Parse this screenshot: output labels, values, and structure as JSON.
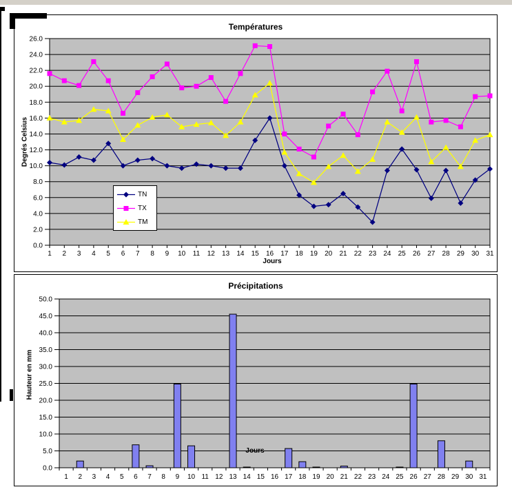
{
  "window": {
    "top_strip_color": "#d4d0c8",
    "frame_mark_color": "#000000",
    "page_background": "#ffffff"
  },
  "chart_data": [
    {
      "type": "line",
      "title": "Températures",
      "xlabel": "Jours",
      "ylabel": "Degrés Celsius",
      "ylim": [
        0,
        26
      ],
      "ytick_step": 2,
      "grid": true,
      "plot_bg": "#c0c0c0",
      "legend_position": "inside-bottom-center",
      "ytick_labels": [
        "0.0",
        "2.0",
        "4.0",
        "6.0",
        "8.0",
        "10.0",
        "12.0",
        "14.0",
        "16.0",
        "18.0",
        "20.0",
        "22.0",
        "24.0",
        "26.0"
      ],
      "x": [
        1,
        2,
        3,
        4,
        5,
        6,
        7,
        8,
        9,
        10,
        11,
        12,
        13,
        14,
        15,
        16,
        17,
        18,
        19,
        20,
        21,
        22,
        23,
        24,
        25,
        26,
        27,
        28,
        29,
        30,
        31
      ],
      "series": [
        {
          "name": "TN",
          "color": "#000080",
          "marker": "diamond",
          "values": [
            10.4,
            10.1,
            11.1,
            10.7,
            12.8,
            10.0,
            10.7,
            10.9,
            10.0,
            9.7,
            10.2,
            10.0,
            9.7,
            9.7,
            13.2,
            16.0,
            10.0,
            6.3,
            4.9,
            5.1,
            6.5,
            4.8,
            2.9,
            9.4,
            12.1,
            9.5,
            5.9,
            9.4,
            5.3,
            8.2,
            9.6
          ]
        },
        {
          "name": "TX",
          "color": "#ff00ff",
          "marker": "square",
          "values": [
            21.6,
            20.7,
            20.1,
            23.1,
            20.7,
            16.6,
            19.2,
            21.2,
            22.8,
            19.8,
            20.0,
            21.1,
            18.1,
            21.6,
            25.1,
            25.0,
            14.0,
            12.1,
            11.1,
            15.0,
            16.5,
            13.9,
            19.3,
            21.9,
            16.9,
            23.1,
            15.5,
            15.7,
            14.9,
            18.7,
            18.8
          ]
        },
        {
          "name": "TM",
          "color": "#ffff00",
          "marker": "triangle",
          "values": [
            16.0,
            15.5,
            15.7,
            17.1,
            16.9,
            13.3,
            15.1,
            16.1,
            16.4,
            14.9,
            15.2,
            15.4,
            13.8,
            15.5,
            18.9,
            20.4,
            11.7,
            9.0,
            7.9,
            9.9,
            11.3,
            9.3,
            10.8,
            15.5,
            14.2,
            16.1,
            10.5,
            12.3,
            9.9,
            13.2,
            13.9
          ]
        }
      ]
    },
    {
      "type": "bar",
      "title": "Précipitations",
      "xlabel": "Jours",
      "ylabel": "Hauteur en mm",
      "ylim": [
        0,
        50
      ],
      "ytick_step": 5,
      "grid": true,
      "plot_bg": "#c0c0c0",
      "bar_color": "#8080f0",
      "ytick_labels": [
        "0.0",
        "5.0",
        "10.0",
        "15.0",
        "20.0",
        "25.0",
        "30.0",
        "35.0",
        "40.0",
        "45.0",
        "50.0"
      ],
      "categories": [
        1,
        2,
        3,
        4,
        5,
        6,
        7,
        8,
        9,
        10,
        11,
        12,
        13,
        14,
        15,
        16,
        17,
        18,
        19,
        20,
        21,
        22,
        23,
        24,
        25,
        26,
        27,
        28,
        29,
        30,
        31
      ],
      "values": [
        0,
        2.0,
        0,
        0,
        0,
        6.8,
        0.6,
        0,
        24.8,
        6.5,
        0,
        0,
        45.5,
        0.2,
        0,
        0,
        5.7,
        1.8,
        0.2,
        0,
        0.5,
        0,
        0,
        0,
        0.2,
        24.8,
        0,
        8.0,
        0,
        2.0,
        0
      ]
    }
  ]
}
